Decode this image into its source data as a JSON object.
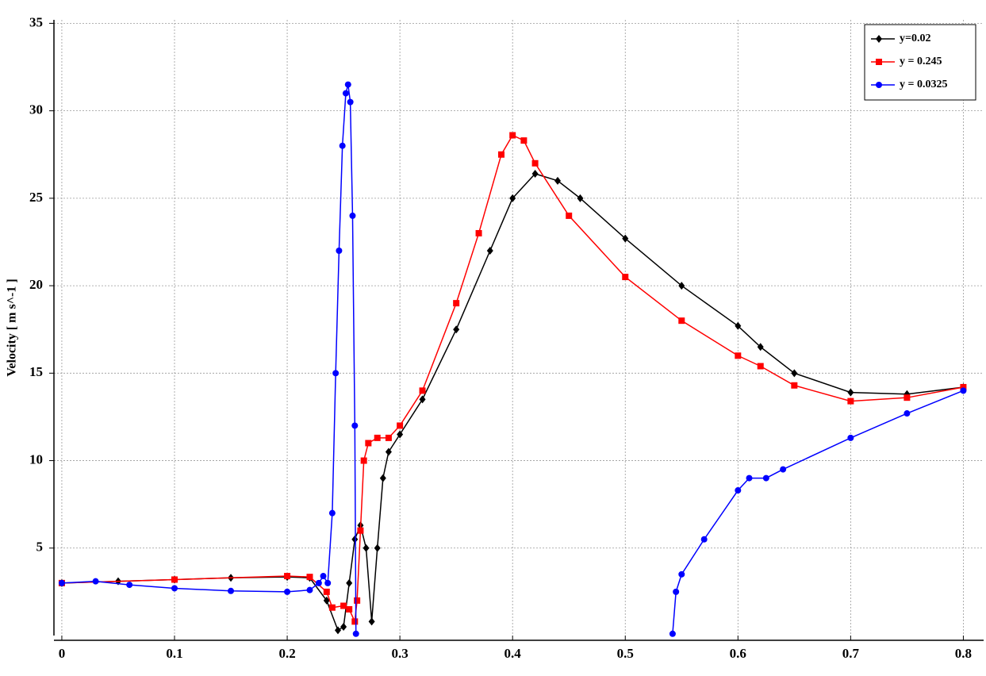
{
  "chart_data": {
    "type": "line",
    "y_label": "Velocity [ m s^-1 ]",
    "xlim": [
      -0.007,
      0.818
    ],
    "ylim": [
      0,
      35.2
    ],
    "xticks": [
      0,
      0.1,
      0.2,
      0.3,
      0.4,
      0.5,
      0.6,
      0.7,
      0.8
    ],
    "yticks": [
      5,
      10,
      15,
      20,
      25,
      30,
      35
    ],
    "grid": true,
    "legend": "upper right",
    "series": [
      {
        "name": "y=0.02",
        "color": "#000000",
        "marker": "diamond",
        "x": [
          0,
          0.05,
          0.1,
          0.15,
          0.2,
          0.22,
          0.235,
          0.245,
          0.25,
          0.255,
          0.26,
          0.265,
          0.27,
          0.275,
          0.28,
          0.285,
          0.29,
          0.3,
          0.32,
          0.35,
          0.38,
          0.4,
          0.42,
          0.44,
          0.46,
          0.5,
          0.55,
          0.6,
          0.62,
          0.65,
          0.7,
          0.75,
          0.8
        ],
        "values": [
          3.0,
          3.1,
          3.2,
          3.3,
          3.35,
          3.3,
          2.0,
          0.3,
          0.5,
          3.0,
          5.5,
          6.3,
          5.0,
          0.8,
          5.0,
          9.0,
          10.5,
          11.5,
          13.5,
          17.5,
          22,
          25,
          26.4,
          26,
          25,
          22.7,
          20,
          17.7,
          16.5,
          15,
          13.9,
          13.8,
          14.2
        ]
      },
      {
        "name": "y = 0.245",
        "color": "#ff0000",
        "marker": "square",
        "x": [
          0,
          0.1,
          0.2,
          0.22,
          0.235,
          0.24,
          0.25,
          0.255,
          0.26,
          0.262,
          0.265,
          0.268,
          0.272,
          0.28,
          0.29,
          0.3,
          0.32,
          0.35,
          0.37,
          0.39,
          0.4,
          0.41,
          0.42,
          0.45,
          0.5,
          0.55,
          0.6,
          0.62,
          0.65,
          0.7,
          0.75,
          0.8
        ],
        "values": [
          3.0,
          3.2,
          3.4,
          3.35,
          2.5,
          1.6,
          1.7,
          1.5,
          0.8,
          2.0,
          6.0,
          10,
          11,
          11.3,
          11.3,
          12,
          14,
          19,
          23,
          27.5,
          28.6,
          28.3,
          27,
          24,
          20.5,
          18,
          16,
          15.4,
          14.3,
          13.4,
          13.6,
          14.2
        ]
      },
      {
        "name": "y = 0.0325",
        "color": "#0000ff",
        "marker": "circle",
        "x": [
          0,
          0.03,
          0.06,
          0.1,
          0.15,
          0.2,
          0.22,
          0.228,
          0.232,
          0.236,
          0.24,
          0.243,
          0.246,
          0.249,
          0.252,
          0.254,
          0.256,
          0.258,
          0.26,
          0.261,
          0.4,
          0.542,
          0.545,
          0.55,
          0.57,
          0.6,
          0.61,
          0.625,
          0.64,
          0.7,
          0.75,
          0.8
        ],
        "values": [
          3.0,
          3.1,
          2.9,
          2.7,
          2.55,
          2.5,
          2.6,
          3.0,
          3.4,
          3.0,
          7,
          15,
          22,
          28,
          31,
          31.5,
          30.5,
          24,
          12,
          0.1,
          null,
          0.1,
          2.5,
          3.5,
          5.5,
          8.3,
          9,
          9,
          9.5,
          11.3,
          12.7,
          14
        ]
      }
    ]
  }
}
